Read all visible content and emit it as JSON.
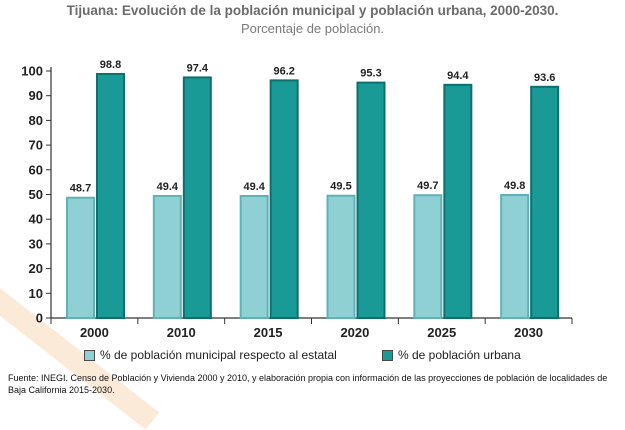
{
  "header": {
    "title": "Tijuana: Evolución de la población municipal y población urbana, 2000-2030.",
    "subtitle": "Porcentaje de población."
  },
  "chart_data": {
    "type": "bar",
    "categories": [
      "2000",
      "2010",
      "2015",
      "2020",
      "2025",
      "2030"
    ],
    "series": [
      {
        "name": "% de población municipal respecto al estatal",
        "values": [
          48.7,
          49.4,
          49.4,
          49.5,
          49.7,
          49.8
        ],
        "color": "#8fd0d4"
      },
      {
        "name": "% de población urbana",
        "values": [
          98.8,
          97.4,
          96.2,
          95.3,
          94.4,
          93.6
        ],
        "color": "#1a9a96"
      }
    ],
    "ylim": [
      0,
      100
    ],
    "yticks": [
      0,
      10,
      20,
      30,
      40,
      50,
      60,
      70,
      80,
      90,
      100
    ],
    "grid": false,
    "legend": "bottom",
    "data_labels": true
  },
  "footer": {
    "source": "Fuente: INEGI. Censo de Población y Vivienda 2000 y 2010, y elaboración propia con información de las proyecciones de población de localidades de Baja California 2015-2030."
  }
}
